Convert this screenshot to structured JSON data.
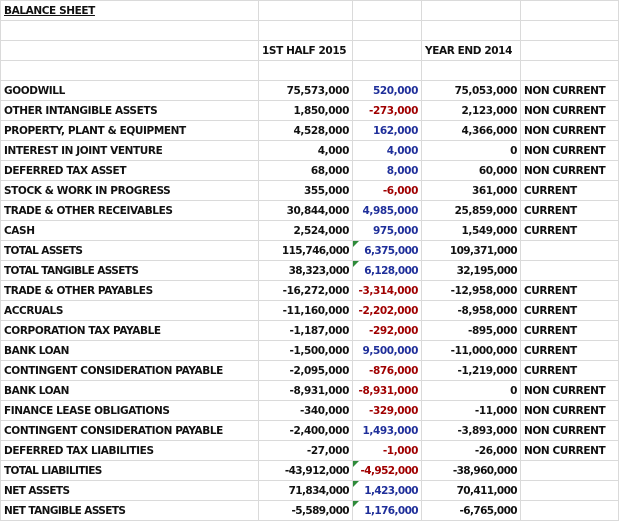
{
  "header": {
    "title": "BALANCE SHEET",
    "columns": [
      "1ST HALF 2015",
      "YEAR END 2014"
    ]
  },
  "table": {
    "rows": [
      [
        "GOODWILL",
        "75,573,000",
        "520,000",
        "75,053,000",
        "NON CURRENT"
      ],
      [
        "OTHER INTANGIBLE ASSETS",
        "1,850,000",
        "-273,000",
        "2,123,000",
        "NON CURRENT"
      ],
      [
        "PROPERTY, PLANT & EQUIPMENT",
        "4,528,000",
        "162,000",
        "4,366,000",
        "NON CURRENT"
      ],
      [
        "INTEREST IN JOINT VENTURE",
        "4,000",
        "4,000",
        "0",
        "NON CURRENT"
      ],
      [
        "DEFERRED TAX ASSET",
        "68,000",
        "8,000",
        "60,000",
        "NON CURRENT"
      ],
      [
        "STOCK & WORK IN PROGRESS",
        "355,000",
        "-6,000",
        "361,000",
        "CURRENT"
      ],
      [
        "TRADE & OTHER RECEIVABLES",
        "30,844,000",
        "4,985,000",
        "25,859,000",
        "CURRENT"
      ],
      [
        "CASH",
        "2,524,000",
        "975,000",
        "1,549,000",
        "CURRENT"
      ],
      [
        "TOTAL ASSETS",
        "115,746,000",
        "6,375,000",
        "109,371,000"
      ],
      [
        "TOTAL TANGIBLE ASSETS",
        "38,323,000",
        "6,128,000",
        "32,195,000"
      ],
      [
        "TRADE & OTHER PAYABLES",
        "-16,272,000",
        "-3,314,000",
        "-12,958,000",
        "CURRENT"
      ],
      [
        "ACCRUALS",
        "-11,160,000",
        "-2,202,000",
        "-8,958,000",
        "CURRENT"
      ],
      [
        "CORPORATION TAX PAYABLE",
        "-1,187,000",
        "-292,000",
        "-895,000",
        "CURRENT"
      ],
      [
        "BANK LOAN",
        "-1,500,000",
        "9,500,000",
        "-11,000,000",
        "CURRENT"
      ],
      [
        "CONTINGENT CONSIDERATION PAYABLE",
        "-2,095,000",
        "-876,000",
        "-1,219,000",
        "CURRENT"
      ],
      [
        "BANK LOAN",
        "-8,931,000",
        "-8,931,000",
        "0",
        "NON CURRENT"
      ],
      [
        "FINANCE LEASE OBLIGATIONS",
        "-340,000",
        "-329,000",
        "-11,000",
        "NON CURRENT"
      ],
      [
        "CONTINGENT CONSIDERATION PAYABLE",
        "-2,400,000",
        "1,493,000",
        "-3,893,000",
        "NON CURRENT"
      ],
      [
        "DEFERRED TAX LIABILITIES",
        "-27,000",
        "-1,000",
        "-26,000",
        "NON CURRENT"
      ],
      [
        "TOTAL LIABILITIES",
        "-43,912,000",
        "-4,952,000",
        "-38,960,000"
      ],
      [
        "NET ASSETS",
        "71,834,000",
        "1,423,000",
        "70,411,000"
      ],
      [
        "NET TANGIBLE ASSETS",
        "-5,589,000",
        "1,176,000",
        "-6,765,000"
      ]
    ]
  }
}
